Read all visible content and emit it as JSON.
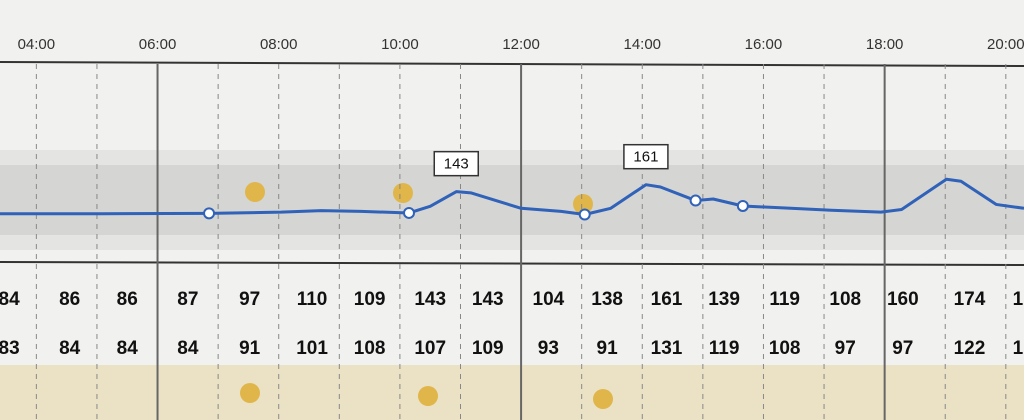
{
  "chart_data": {
    "type": "line",
    "xlim": [
      3.4,
      20.3
    ],
    "ylim": [
      0,
      500
    ],
    "xticks": [
      {
        "value": 4,
        "label": "04:00"
      },
      {
        "value": 6,
        "label": "06:00"
      },
      {
        "value": 8,
        "label": "08:00"
      },
      {
        "value": 10,
        "label": "10:00"
      },
      {
        "value": 12,
        "label": "12:00"
      },
      {
        "value": 14,
        "label": "14:00"
      },
      {
        "value": 16,
        "label": "16:00"
      },
      {
        "value": 18,
        "label": "18:00"
      },
      {
        "value": 20,
        "label": "20:00"
      }
    ],
    "color": "#2f62b8",
    "x": [
      3.4,
      5.07,
      6.85,
      8.04,
      8.7,
      9.36,
      10.15,
      10.5,
      10.93,
      11.17,
      12.0,
      12.66,
      13.05,
      13.48,
      14.06,
      14.3,
      14.88,
      15.17,
      15.66,
      16.45,
      17.12,
      17.94,
      18.28,
      19.02,
      19.26,
      19.84,
      20.3
    ],
    "values": [
      86,
      86,
      87,
      90,
      94,
      92,
      88,
      105,
      143,
      140,
      100,
      92,
      84,
      100,
      161,
      155,
      120,
      124,
      106,
      100,
      95,
      90,
      97,
      175,
      170,
      110,
      100
    ],
    "markers": {
      "x": [
        6.85,
        10.15,
        13.05,
        14.88,
        15.66
      ],
      "values": [
        87,
        88,
        84,
        120,
        106
      ]
    },
    "annotations": [
      {
        "x": 10.93,
        "value": 143
      },
      {
        "x": 14.06,
        "value": 161
      }
    ],
    "table": {
      "columns_x": [
        3.55,
        4.55,
        5.5,
        6.5,
        7.52,
        8.55,
        9.5,
        10.5,
        11.45,
        12.45,
        13.42,
        14.4,
        15.35,
        16.35,
        17.35,
        18.3,
        19.4,
        20.2
      ],
      "rows": [
        [
          84,
          86,
          86,
          87,
          97,
          110,
          109,
          143,
          143,
          104,
          138,
          161,
          139,
          119,
          108,
          160,
          174,
          "1"
        ],
        [
          83,
          84,
          84,
          84,
          91,
          101,
          108,
          107,
          109,
          93,
          91,
          131,
          119,
          108,
          97,
          97,
          122,
          "1"
        ]
      ]
    }
  }
}
